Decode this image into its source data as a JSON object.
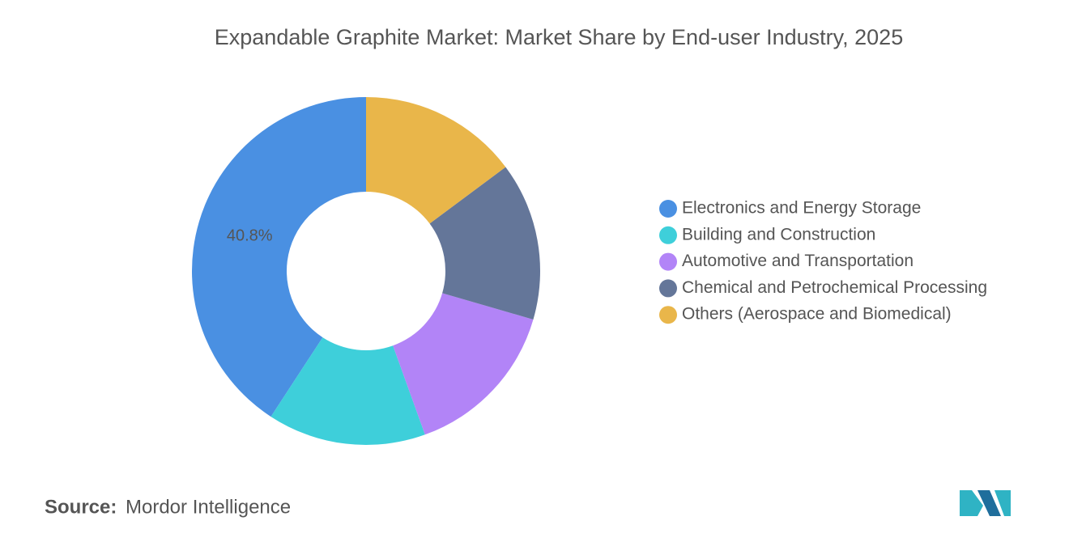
{
  "chart_data": {
    "type": "donut",
    "title": "Expandable Graphite Market: Market Share by End-user Industry, 2025",
    "categories": [
      "Electronics and Energy Storage",
      "Building and Construction",
      "Automotive and Transportation",
      "Chemical and Petrochemical Processing",
      "Others (Aerospace and Biomedical)"
    ],
    "values": [
      40.8,
      14.7,
      15.0,
      14.7,
      14.8
    ],
    "value_labels": [
      "40.8%",
      null,
      null,
      null,
      null
    ],
    "colors": [
      "#4a90e2",
      "#3ecfda",
      "#b284f7",
      "#647699",
      "#e9b64a"
    ],
    "legend": "right"
  },
  "source_label": "Source:",
  "source": "Mordor Intelligence"
}
